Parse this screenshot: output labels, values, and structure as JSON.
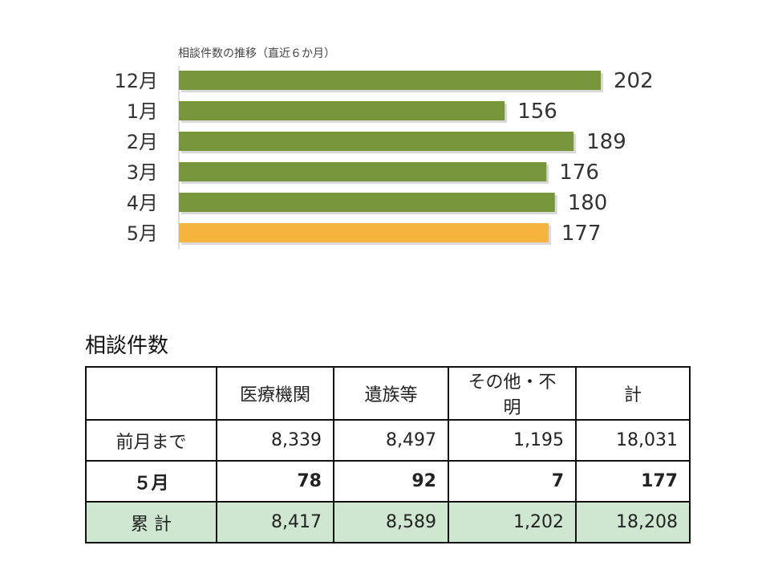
{
  "chart_data": {
    "type": "bar",
    "orientation": "horizontal",
    "title": "相談件数の推移（直近６か月）",
    "categories": [
      "12月",
      "1月",
      "2月",
      "3月",
      "4月",
      "5月"
    ],
    "values": [
      202,
      156,
      189,
      176,
      180,
      177
    ],
    "colors": [
      "#77963c",
      "#77963c",
      "#77963c",
      "#77963c",
      "#77963c",
      "#f5b43d"
    ],
    "xlim": [
      0,
      202
    ]
  },
  "table": {
    "title": "相談件数",
    "headers": [
      "",
      "医療機関",
      "遺族等",
      "その他・不明",
      "計"
    ],
    "rows": [
      {
        "label": "前月まで",
        "values": [
          "8,339",
          "8,497",
          "1,195",
          "18,031"
        ]
      },
      {
        "label": "５月",
        "values": [
          "78",
          "92",
          "7",
          "177"
        ]
      },
      {
        "label": "累 計",
        "values": [
          "8,417",
          "8,589",
          "1,202",
          "18,208"
        ]
      }
    ]
  }
}
